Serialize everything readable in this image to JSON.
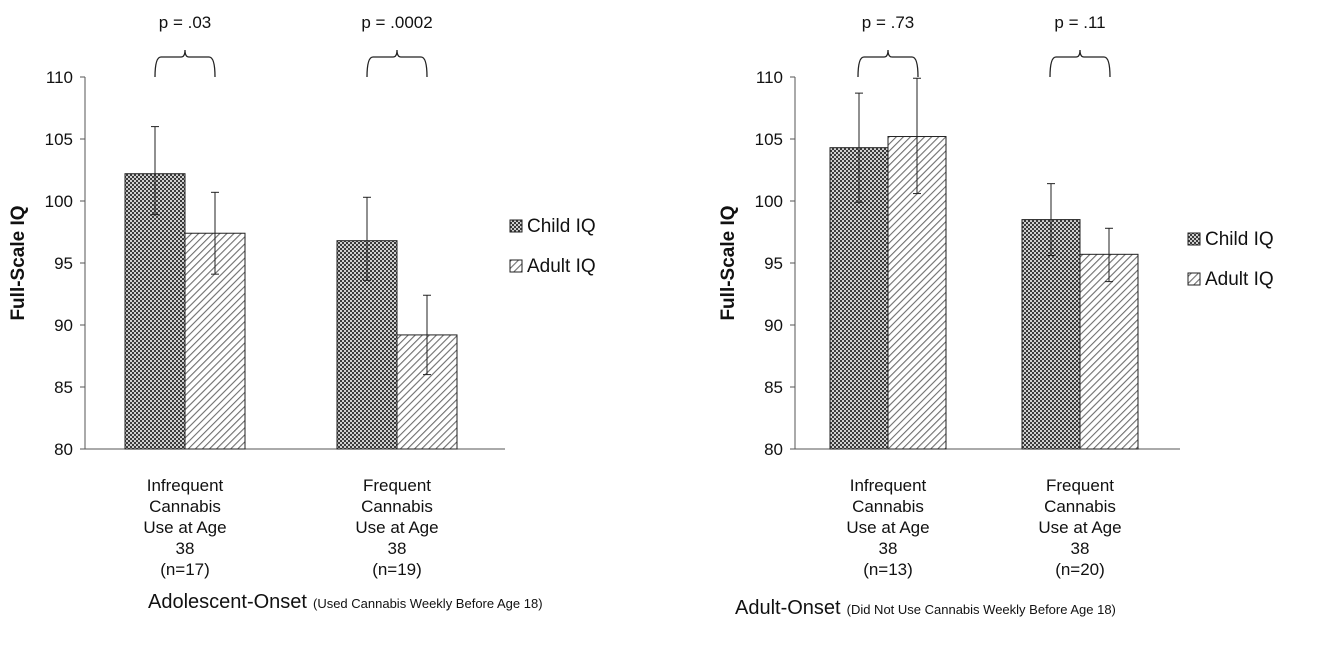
{
  "chart_data": [
    {
      "type": "bar",
      "ylabel": "Full-Scale IQ",
      "ylim": [
        80,
        110
      ],
      "yticks": [
        80,
        85,
        90,
        95,
        100,
        105,
        110
      ],
      "categories": [
        [
          "Infrequent",
          "Cannabis",
          "Use at Age",
          "38",
          "(n=17)"
        ],
        [
          "Frequent",
          "Cannabis",
          "Use at Age",
          "38",
          "(n=19)"
        ]
      ],
      "series": [
        {
          "name": "Child IQ",
          "pattern": "crosshatch",
          "values": [
            102.2,
            96.8
          ],
          "err_low": [
            98.9,
            93.6
          ],
          "err_high": [
            106.0,
            100.3
          ]
        },
        {
          "name": "Adult IQ",
          "pattern": "diagonal",
          "values": [
            97.4,
            89.2
          ],
          "err_low": [
            94.1,
            86.0
          ],
          "err_high": [
            100.7,
            92.4
          ]
        }
      ],
      "pvalues": [
        "p = .03",
        "p = .0002"
      ],
      "legend_position": "right",
      "caption_main": "Adolescent-Onset",
      "caption_note": "(Used Cannabis Weekly Before Age 18)",
      "grid": false
    },
    {
      "type": "bar",
      "ylabel": "Full-Scale IQ",
      "ylim": [
        80,
        110
      ],
      "yticks": [
        80,
        85,
        90,
        95,
        100,
        105,
        110
      ],
      "categories": [
        [
          "Infrequent",
          "Cannabis",
          "Use at Age",
          "38",
          "(n=13)"
        ],
        [
          "Frequent",
          "Cannabis",
          "Use at Age",
          "38",
          "(n=20)"
        ]
      ],
      "series": [
        {
          "name": "Child IQ",
          "pattern": "crosshatch",
          "values": [
            104.3,
            98.5
          ],
          "err_low": [
            99.9,
            95.6
          ],
          "err_high": [
            108.7,
            101.4
          ]
        },
        {
          "name": "Adult IQ",
          "pattern": "diagonal",
          "values": [
            105.2,
            95.7
          ],
          "err_low": [
            100.6,
            93.5
          ],
          "err_high": [
            109.9,
            97.8
          ]
        }
      ],
      "pvalues": [
        "p = .73",
        "p = .11"
      ],
      "legend_position": "right",
      "caption_main": "Adult-Onset",
      "caption_note": "(Did Not Use Cannabis Weekly Before Age 18)",
      "grid": false
    }
  ]
}
